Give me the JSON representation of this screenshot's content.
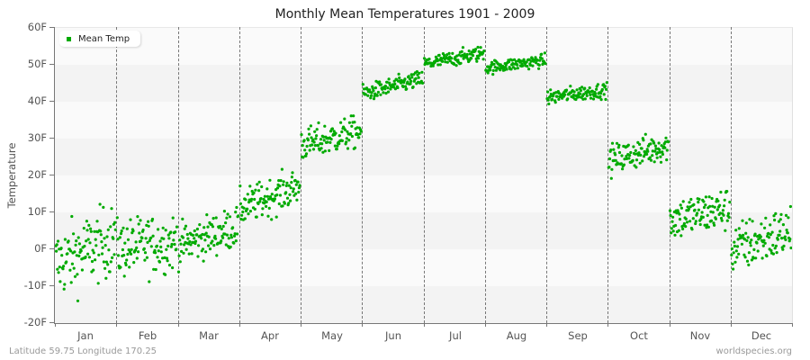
{
  "page": {
    "title": "Monthly Mean Temperatures 1901 - 2009",
    "footer_left": "Latitude 59.75 Longitude 170.25",
    "footer_right": "worldspecies.org"
  },
  "legend": {
    "label": "Mean Temp",
    "color": "#00aa00"
  },
  "colors": {
    "point": "#00aa00",
    "band_light": "#fafafa",
    "band_dark": "#f3f3f3",
    "axis": "#777777"
  },
  "y_axis": {
    "title": "Temperature",
    "ticks": [
      "60F",
      "50F",
      "40F",
      "30F",
      "20F",
      "10F",
      "0F",
      "-10F",
      "-20F"
    ]
  },
  "x_axis": {
    "ticks": [
      "Jan",
      "Feb",
      "Mar",
      "Apr",
      "May",
      "Jun",
      "Jul",
      "Aug",
      "Sep",
      "Oct",
      "Nov",
      "Dec"
    ]
  },
  "chart_data": {
    "type": "scatter",
    "title": "Monthly Mean Temperatures 1901 - 2009",
    "xlabel": "",
    "ylabel": "Temperature",
    "ylim": [
      -20,
      60
    ],
    "yticks": [
      -20,
      -10,
      0,
      10,
      20,
      30,
      40,
      50,
      60
    ],
    "unit": "F",
    "grid": "alternating horizontal bands, dashed vertical month separators",
    "legend_position": "top-left",
    "series": [
      {
        "name": "Mean Temp",
        "color": "#00aa00"
      }
    ],
    "categories": [
      "Jan",
      "Feb",
      "Mar",
      "Apr",
      "May",
      "Jun",
      "Jul",
      "Aug",
      "Sep",
      "Oct",
      "Nov",
      "Dec"
    ],
    "years": [
      1901,
      2009
    ],
    "points_per_month": 109,
    "monthly": [
      {
        "month": "Jan",
        "mean": 1.5,
        "min": -14,
        "max": 19,
        "start": -4,
        "end": 3
      },
      {
        "month": "Feb",
        "mean": 1.0,
        "min": -11,
        "max": 16,
        "start": 0,
        "end": 2
      },
      {
        "month": "Mar",
        "mean": 3.5,
        "min": -7,
        "max": 12,
        "start": 1,
        "end": 6
      },
      {
        "month": "Apr",
        "mean": 14.0,
        "min": 6,
        "max": 23,
        "start": 11,
        "end": 17
      },
      {
        "month": "May",
        "mean": 30.0,
        "min": 21,
        "max": 36,
        "start": 28,
        "end": 32
      },
      {
        "month": "Jun",
        "mean": 44.5,
        "min": 40,
        "max": 48,
        "start": 42,
        "end": 46
      },
      {
        "month": "Jul",
        "mean": 51.5,
        "min": 48,
        "max": 55,
        "start": 50,
        "end": 53
      },
      {
        "month": "Aug",
        "mean": 50.0,
        "min": 47,
        "max": 53,
        "start": 49,
        "end": 51
      },
      {
        "month": "Sep",
        "mean": 41.0,
        "min": 38,
        "max": 45,
        "start": 41,
        "end": 43
      },
      {
        "month": "Oct",
        "mean": 25.5,
        "min": 18,
        "max": 32,
        "start": 24,
        "end": 28
      },
      {
        "month": "Nov",
        "mean": 10.0,
        "min": 1,
        "max": 21,
        "start": 8,
        "end": 11
      },
      {
        "month": "Dec",
        "mean": 2.0,
        "min": -10,
        "max": 14,
        "start": 0,
        "end": 5
      }
    ]
  }
}
